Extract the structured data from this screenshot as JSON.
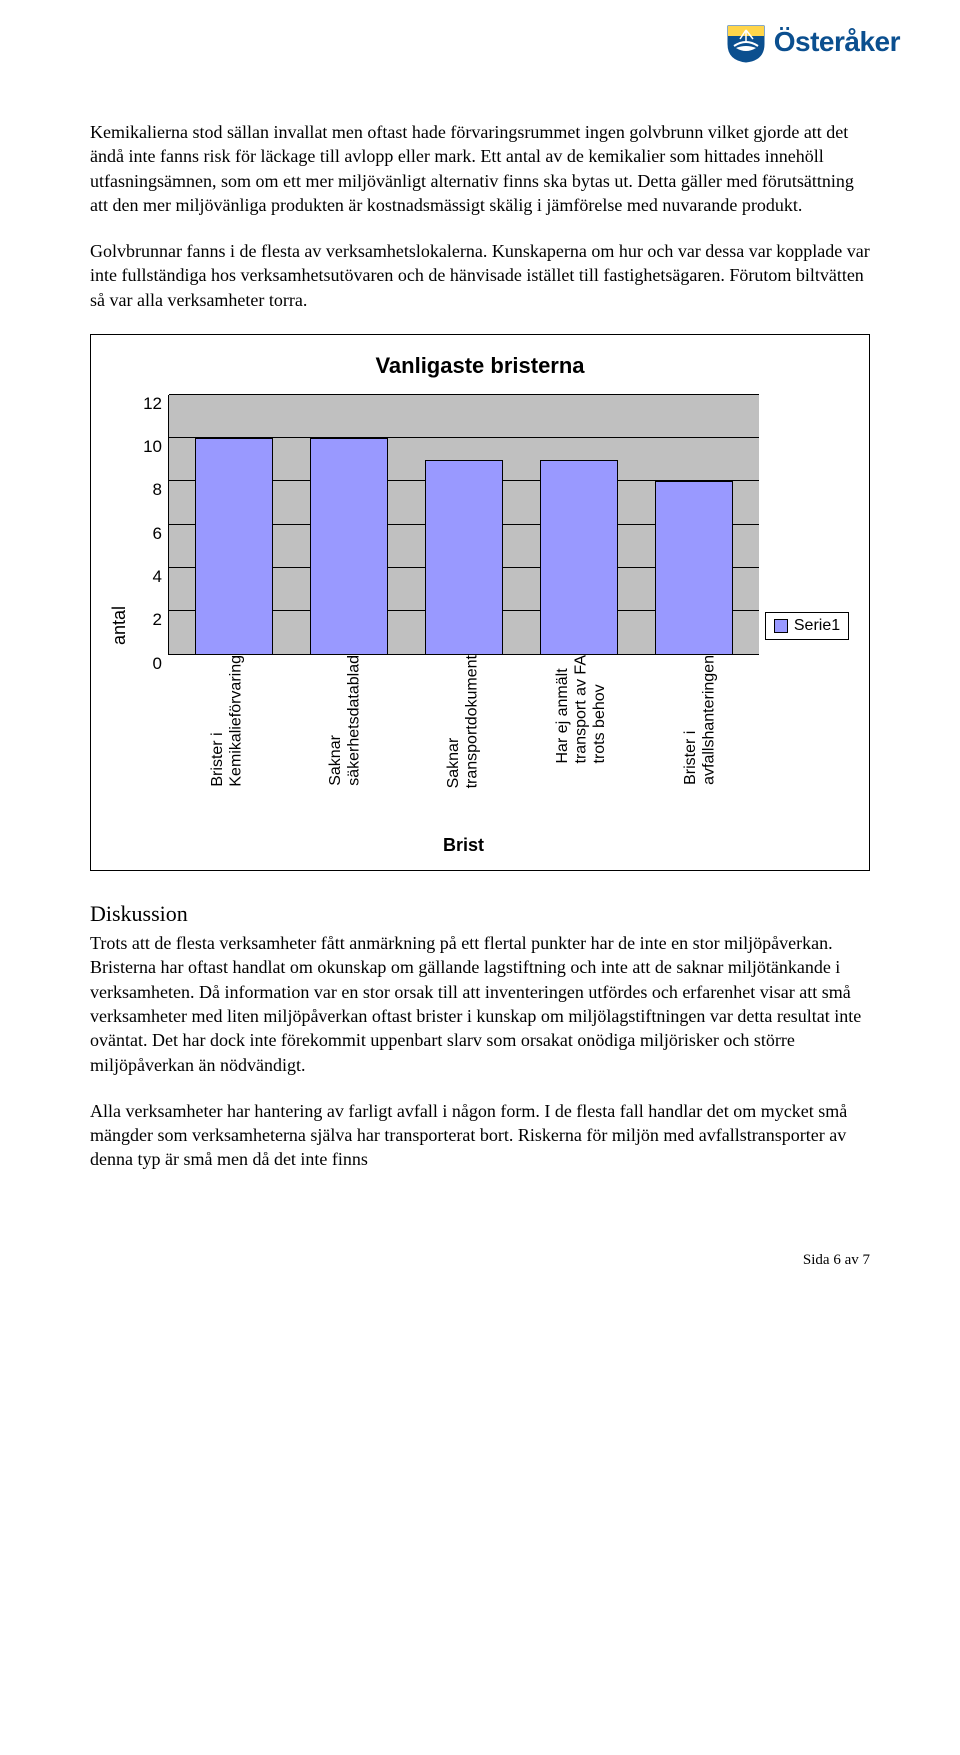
{
  "logo": {
    "text": "Österåker",
    "color": "#0b4f8f"
  },
  "paragraphs": {
    "p1": "Kemikalierna stod sällan invallat men oftast hade förvaringsrummet ingen golvbrunn vilket gjorde att det ändå inte fanns risk för läckage till avlopp eller mark. Ett antal av de kemikalier som hittades innehöll utfasningsämnen, som om ett mer miljövänligt alternativ finns ska bytas ut. Detta gäller med förutsättning att den mer miljövänliga produkten är kostnadsmässigt skälig i jämförelse med nuvarande produkt.",
    "p2": "Golvbrunnar fanns i de flesta av verksamhetslokalerna. Kunskaperna om hur och var dessa var kopplade var inte fullständiga hos verksamhetsutövaren och de hänvisade istället till fastighetsägaren. Förutom biltvätten så var alla verksamheter torra."
  },
  "chart": {
    "type": "bar",
    "title": "Vanligaste bristerna",
    "ylabel": "antal",
    "xlabel": "Brist",
    "ymax": 12,
    "ytick_step": 2,
    "yticks": [
      0,
      2,
      4,
      6,
      8,
      10,
      12
    ],
    "plot_background": "#c0c0c0",
    "grid_color": "#000000",
    "bar_color": "#9999ff",
    "bar_border": "#000000",
    "categories": [
      "Brister i\nKemikalieförvaring",
      "Saknar\nsäkerhetsdatablad",
      "Saknar\ntransportdokument",
      "Har ej anmält\ntransport av FA\ntrots behov",
      "Brister i\navfallshanteringen"
    ],
    "values": [
      10,
      10,
      9,
      9,
      8
    ],
    "legend_label": "Serie1",
    "title_fontsize": 22,
    "tick_fontsize": 17
  },
  "discussion": {
    "heading": "Diskussion",
    "p1": "Trots att de flesta verksamheter fått anmärkning på ett flertal punkter har de inte en stor miljöpåverkan. Bristerna har oftast handlat om okunskap om gällande lagstiftning och inte att de saknar miljötänkande i verksamheten. Då information var en stor orsak till att inventeringen utfördes och erfarenhet visar att små verksamheter med liten miljöpåverkan oftast brister i kunskap om miljölagstiftningen var detta resultat inte oväntat. Det har dock inte förekommit uppenbart slarv som orsakat onödiga miljörisker och större miljöpåverkan än nödvändigt.",
    "p2": "Alla verksamheter har hantering av farligt avfall i någon form. I de flesta fall handlar det om mycket små mängder som verksamheterna själva har transporterat bort. Riskerna för miljön med avfallstransporter av denna typ är små men då det inte finns"
  },
  "footer": "Sida 6 av 7"
}
